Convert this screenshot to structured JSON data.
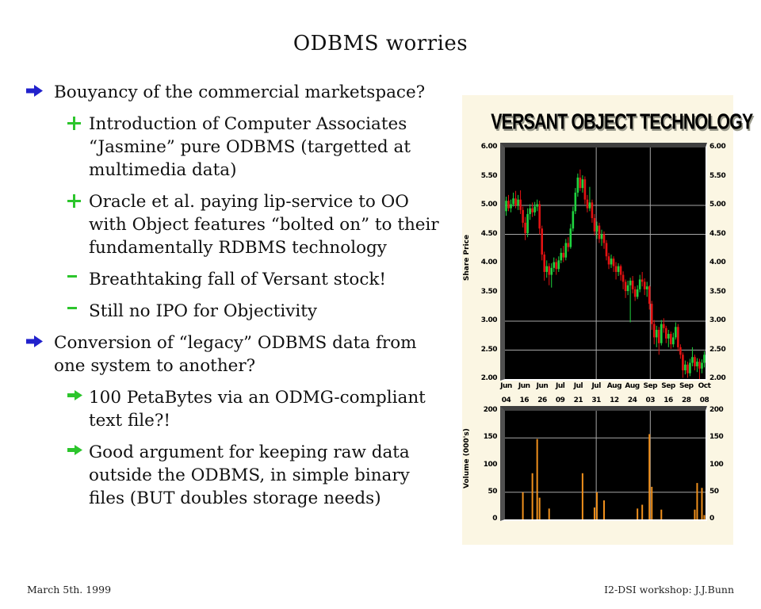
{
  "slide": {
    "title": "ODBMS worries",
    "footer_left": "March 5th. 1999",
    "footer_right": "I2-DSI workshop: J.J.Bunn"
  },
  "colors": {
    "bullet_blue": "#2121CC",
    "bullet_green": "#2CC52C",
    "candle_up": "#1FD33F",
    "candle_down": "#E31212",
    "volume_bar": "#F0901C",
    "grid": "#A6A6A6",
    "chart_background": "#FBF6E3",
    "plot_background": "#000000"
  },
  "bullets": [
    {
      "level": 1,
      "marker": "blue-arrow",
      "text": "Bouyancy of the commercial marketspace?"
    },
    {
      "level": 2,
      "marker": "plus",
      "text": "Introduction of Computer Associates\n“Jasmine” pure ODBMS (targetted at\nmultimedia data)"
    },
    {
      "level": 2,
      "marker": "plus",
      "text": "Oracle et al. paying lip-service to OO\nwith Object features “bolted on” to their\nfundamentally RDBMS technology"
    },
    {
      "level": 2,
      "marker": "dash",
      "text": "Breathtaking fall of Versant stock!"
    },
    {
      "level": 2,
      "marker": "dash",
      "text": "Still no IPO for Objectivity"
    },
    {
      "level": 1,
      "marker": "blue-arrow",
      "text": "Conversion of “legacy” ODBMS data from\none system to another?"
    },
    {
      "level": 2,
      "marker": "green-arrow",
      "text": "100 PetaBytes via an ODMG-compliant\ntext file?!"
    },
    {
      "level": 2,
      "marker": "green-arrow",
      "text": "Good argument for keeping raw data\noutside the ODBMS, in simple binary\nfiles (BUT doubles storage needs)"
    }
  ],
  "chart_data": {
    "type": "candlestick-with-volume",
    "title": "VERSANT OBJECT TECHNOLOGY",
    "price_axis": {
      "label": "Share Price",
      "ticks": [
        "6.00",
        "5.50",
        "5.00",
        "4.50",
        "4.00",
        "3.50",
        "3.00",
        "2.50",
        "2.00"
      ],
      "tick_values": [
        6.0,
        5.5,
        5.0,
        4.5,
        4.0,
        3.5,
        3.0,
        2.5,
        2.0
      ],
      "range": [
        2.0,
        6.0
      ],
      "gridlines": [
        5.0,
        4.5,
        3.0,
        2.5
      ]
    },
    "volume_axis": {
      "label": "Volume (000's)",
      "ticks": [
        "200",
        "150",
        "100",
        "50",
        "0"
      ],
      "tick_values": [
        200,
        150,
        100,
        50,
        0
      ],
      "range": [
        0,
        200
      ],
      "gridlines": [
        150,
        50
      ]
    },
    "x_axis": {
      "months": [
        "Jun",
        "Jun",
        "Jun",
        "Jul",
        "Jul",
        "Jul",
        "Aug",
        "Aug",
        "Sep",
        "Sep",
        "Sep",
        "Oct"
      ],
      "days": [
        "04",
        "16",
        "26",
        "09",
        "21",
        "31",
        "12",
        "24",
        "03",
        "16",
        "28",
        "08"
      ],
      "vertical_gridline_ticks": [
        5,
        8
      ]
    },
    "candles": [
      [
        4.9,
        5.15,
        4.82,
        5.08
      ],
      [
        5.08,
        5.18,
        4.9,
        4.95
      ],
      [
        4.95,
        5.1,
        4.88,
        5.02
      ],
      [
        5.02,
        5.22,
        4.98,
        5.12
      ],
      [
        5.12,
        5.25,
        4.95,
        5.0
      ],
      [
        5.0,
        5.18,
        4.92,
        5.1
      ],
      [
        5.1,
        5.26,
        4.85,
        4.92
      ],
      [
        4.92,
        4.98,
        4.62,
        4.7
      ],
      [
        4.7,
        4.8,
        4.4,
        4.52
      ],
      [
        4.52,
        4.95,
        4.45,
        4.85
      ],
      [
        4.85,
        5.02,
        4.75,
        4.95
      ],
      [
        4.95,
        5.05,
        4.8,
        4.88
      ],
      [
        4.88,
        5.06,
        4.82,
        4.98
      ],
      [
        4.98,
        5.1,
        4.9,
        5.02
      ],
      [
        5.02,
        5.08,
        4.5,
        4.6
      ],
      [
        4.6,
        4.65,
        4.05,
        4.15
      ],
      [
        4.15,
        4.2,
        3.7,
        3.85
      ],
      [
        3.85,
        4.05,
        3.75,
        3.95
      ],
      [
        3.95,
        4.0,
        3.62,
        3.8
      ],
      [
        3.8,
        4.0,
        3.58,
        3.92
      ],
      [
        3.92,
        4.1,
        3.85,
        4.02
      ],
      [
        4.02,
        4.08,
        3.8,
        3.9
      ],
      [
        3.9,
        4.12,
        3.85,
        4.05
      ],
      [
        4.05,
        4.26,
        4.0,
        4.18
      ],
      [
        4.18,
        4.3,
        4.02,
        4.1
      ],
      [
        4.1,
        4.42,
        4.05,
        4.35
      ],
      [
        4.35,
        4.45,
        4.2,
        4.28
      ],
      [
        4.28,
        4.68,
        4.25,
        4.6
      ],
      [
        4.6,
        4.98,
        4.55,
        4.9
      ],
      [
        4.9,
        5.3,
        4.85,
        5.22
      ],
      [
        5.22,
        5.55,
        5.15,
        5.48
      ],
      [
        5.48,
        5.62,
        5.25,
        5.3
      ],
      [
        5.3,
        5.52,
        5.22,
        5.45
      ],
      [
        5.45,
        5.5,
        5.02,
        5.1
      ],
      [
        5.1,
        5.18,
        4.88,
        4.95
      ],
      [
        4.95,
        5.32,
        4.9,
        5.05
      ],
      [
        5.05,
        5.1,
        4.7,
        4.78
      ],
      [
        4.78,
        4.85,
        4.48,
        4.55
      ],
      [
        4.55,
        4.72,
        4.42,
        4.65
      ],
      [
        4.65,
        4.7,
        4.35,
        4.42
      ],
      [
        4.42,
        4.58,
        4.3,
        4.5
      ],
      [
        4.5,
        4.55,
        4.25,
        4.35
      ],
      [
        4.35,
        4.4,
        4.05,
        4.12
      ],
      [
        4.12,
        4.18,
        3.9,
        3.98
      ],
      [
        3.98,
        4.15,
        3.92,
        4.08
      ],
      [
        4.08,
        4.12,
        3.85,
        3.95
      ],
      [
        3.95,
        4.02,
        3.72,
        3.85
      ],
      [
        3.85,
        4.0,
        3.78,
        3.95
      ],
      [
        3.95,
        3.98,
        3.7,
        3.8
      ],
      [
        3.8,
        3.86,
        3.55,
        3.68
      ],
      [
        3.68,
        3.72,
        3.4,
        3.52
      ],
      [
        3.52,
        3.7,
        3.45,
        3.62
      ],
      [
        3.62,
        3.75,
        2.98,
        3.7
      ],
      [
        3.7,
        3.78,
        3.48,
        3.55
      ],
      [
        3.55,
        3.6,
        3.35,
        3.42
      ],
      [
        3.42,
        3.62,
        3.38,
        3.55
      ],
      [
        3.55,
        3.8,
        3.5,
        3.72
      ],
      [
        3.72,
        3.85,
        3.6,
        3.68
      ],
      [
        3.68,
        3.74,
        3.45,
        3.55
      ],
      [
        3.55,
        3.68,
        3.42,
        3.6
      ],
      [
        3.6,
        3.62,
        3.2,
        3.3
      ],
      [
        3.3,
        3.35,
        2.85,
        2.95
      ],
      [
        2.95,
        3.02,
        2.6,
        2.72
      ],
      [
        2.72,
        2.92,
        2.55,
        2.85
      ],
      [
        2.85,
        2.9,
        2.42,
        2.62
      ],
      [
        2.62,
        3.02,
        2.58,
        2.95
      ],
      [
        2.95,
        3.05,
        2.8,
        2.88
      ],
      [
        2.88,
        2.92,
        2.62,
        2.7
      ],
      [
        2.7,
        2.85,
        2.55,
        2.78
      ],
      [
        2.78,
        2.82,
        2.52,
        2.6
      ],
      [
        2.6,
        2.8,
        2.55,
        2.72
      ],
      [
        2.72,
        2.98,
        2.68,
        2.9
      ],
      [
        2.9,
        2.95,
        2.48,
        2.55
      ],
      [
        2.55,
        2.6,
        2.35,
        2.42
      ],
      [
        2.42,
        2.46,
        2.02,
        2.15
      ],
      [
        2.15,
        2.32,
        2.08,
        2.25
      ],
      [
        2.25,
        2.3,
        2.02,
        2.1
      ],
      [
        2.1,
        2.35,
        2.05,
        2.28
      ],
      [
        2.28,
        2.55,
        2.22,
        2.38
      ],
      [
        2.38,
        2.42,
        2.15,
        2.22
      ],
      [
        2.22,
        2.36,
        2.12,
        2.3
      ],
      [
        2.3,
        2.35,
        1.95,
        2.18
      ],
      [
        2.18,
        2.34,
        2.1,
        2.28
      ],
      [
        2.28,
        2.48,
        2.2,
        2.42
      ]
    ],
    "volumes": [
      0,
      0,
      0,
      0,
      0,
      0,
      0,
      50,
      0,
      0,
      0,
      85,
      0,
      148,
      40,
      0,
      0,
      0,
      20,
      0,
      0,
      0,
      0,
      0,
      0,
      0,
      0,
      0,
      0,
      0,
      0,
      0,
      85,
      0,
      0,
      0,
      0,
      22,
      50,
      0,
      0,
      35,
      0,
      0,
      0,
      0,
      0,
      0,
      0,
      0,
      0,
      0,
      0,
      0,
      0,
      20,
      0,
      27,
      0,
      0,
      157,
      60,
      0,
      0,
      0,
      18,
      0,
      0,
      0,
      0,
      0,
      0,
      0,
      0,
      0,
      0,
      0,
      0,
      0,
      18,
      67,
      0,
      58,
      8
    ]
  }
}
